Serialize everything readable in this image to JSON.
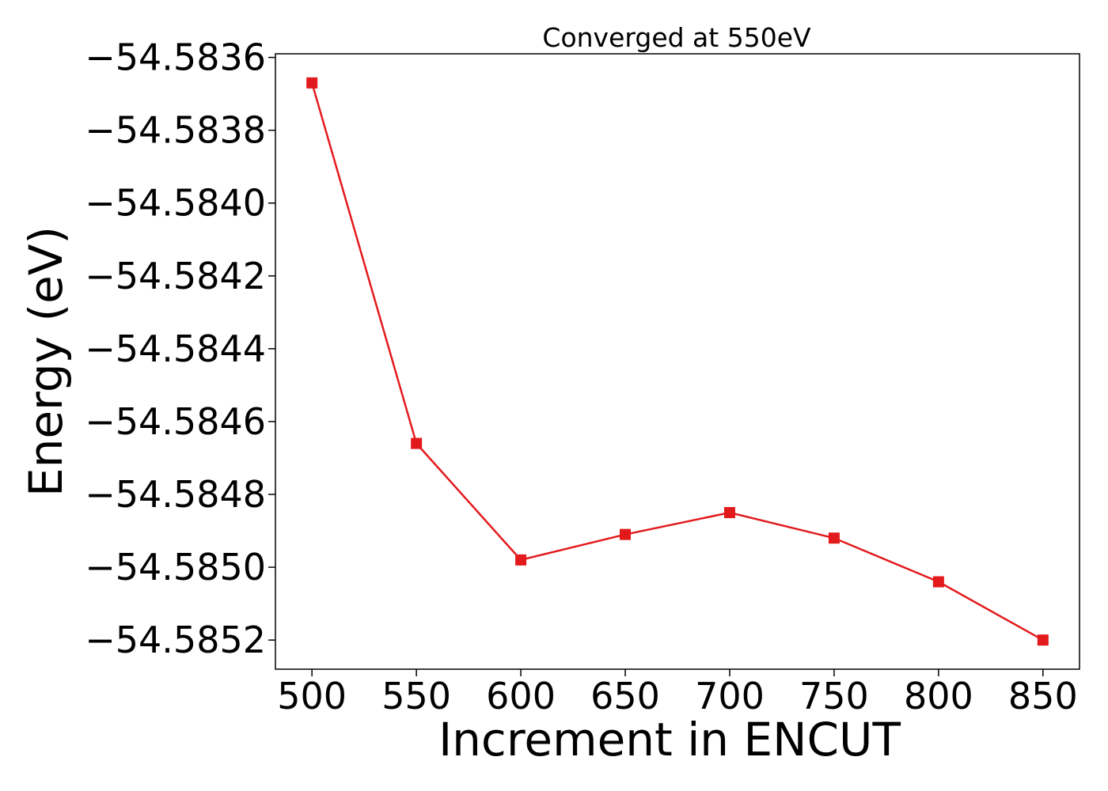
{
  "chart_data": {
    "type": "line",
    "title": "Converged at 550eV",
    "xlabel": "Increment in ENCUT",
    "ylabel": "Energy (eV)",
    "x": [
      500,
      550,
      600,
      650,
      700,
      750,
      800,
      850
    ],
    "series": [
      {
        "values": [
          -54.58367,
          -54.58466,
          -54.58498,
          -54.58491,
          -54.58485,
          -54.58492,
          -54.58504,
          -54.5852
        ],
        "color": "#e31a1c",
        "marker": "square"
      }
    ],
    "xlim": [
      482.5,
      867.5
    ],
    "ylim": [
      -54.58528,
      -54.58359
    ],
    "xticks": [
      500,
      550,
      600,
      650,
      700,
      750,
      800,
      850
    ],
    "xtick_labels": [
      "500",
      "550",
      "600",
      "650",
      "700",
      "750",
      "800",
      "850"
    ],
    "yticks": [
      -54.5836,
      -54.5838,
      -54.584,
      -54.5842,
      -54.5844,
      -54.5846,
      -54.5848,
      -54.585,
      -54.5852
    ],
    "ytick_labels": [
      "−54.5836",
      "−54.5838",
      "−54.5840",
      "−54.5842",
      "−54.5844",
      "−54.5846",
      "−54.5848",
      "−54.5850",
      "−54.5852"
    ],
    "grid": false,
    "legend": "none"
  }
}
